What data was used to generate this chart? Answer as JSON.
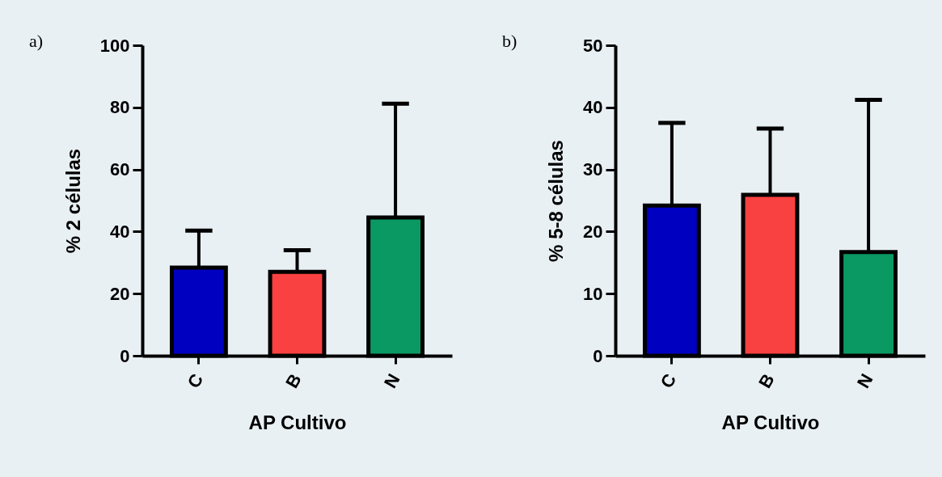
{
  "chart_data": [
    {
      "type": "bar",
      "annotations": [
        "a)"
      ],
      "xlabel": "AP Cultivo",
      "ylabel": "% 2 células",
      "categories": [
        "C",
        "B",
        "N"
      ],
      "values": [
        28.4,
        27.0,
        44.5
      ],
      "colors": [
        "#0000c0",
        "#f94141",
        "#0a9963"
      ],
      "errors": [
        [
          28.4,
          40.3
        ],
        [
          27.0,
          34.0
        ],
        [
          44.5,
          81.2
        ]
      ],
      "ylim": [
        0,
        100
      ],
      "yticks": [
        0,
        20,
        40,
        60,
        80,
        100
      ],
      "grid": false,
      "legend": false
    },
    {
      "type": "bar",
      "annotations": [
        "b)"
      ],
      "xlabel": "AP Cultivo",
      "ylabel": "% 5-8 células",
      "categories": [
        "C",
        "B",
        "N"
      ],
      "values": [
        24.2,
        25.9,
        16.7
      ],
      "colors": [
        "#0000c0",
        "#f94141",
        "#0a9963"
      ],
      "errors": [
        [
          24.2,
          37.5
        ],
        [
          25.9,
          36.6
        ],
        [
          16.7,
          41.2
        ]
      ],
      "ylim": [
        0,
        50
      ],
      "yticks": [
        0,
        10,
        20,
        30,
        40,
        50
      ],
      "grid": false,
      "legend": false
    }
  ]
}
